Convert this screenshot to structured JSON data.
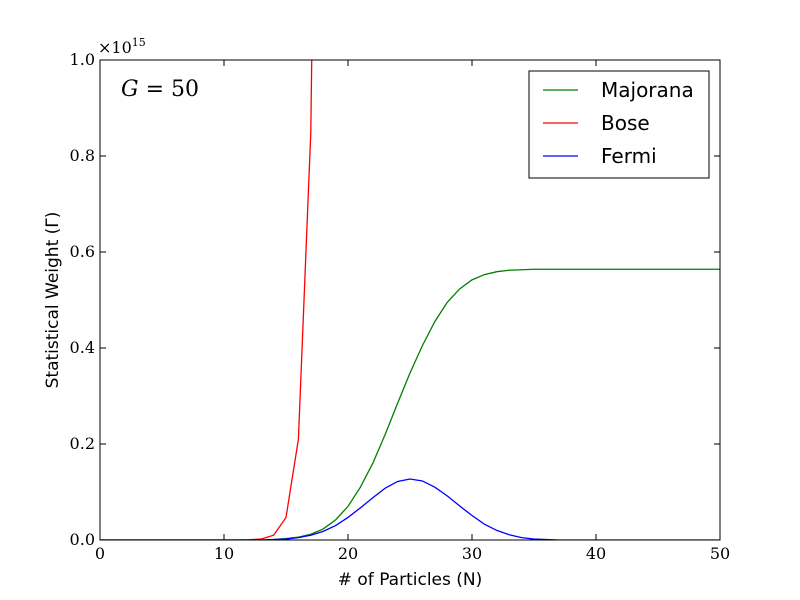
{
  "chart_data": {
    "type": "line",
    "xlabel": "# of Particles (N)",
    "ylabel": "Statistical Weight (Γ)",
    "xlim": [
      0,
      50
    ],
    "ylim": [
      0,
      1.0
    ],
    "x_ticks": [
      0,
      10,
      20,
      30,
      40,
      50
    ],
    "y_ticks": [
      0.0,
      0.2,
      0.4,
      0.6,
      0.8,
      1.0
    ],
    "y_tick_labels": [
      "0.0",
      "0.2",
      "0.4",
      "0.6",
      "0.8",
      "1.0"
    ],
    "y_offset": {
      "base": "×10",
      "exponent": "15"
    },
    "annotation": {
      "lhs": "G",
      "eq": " = ",
      "rhs": "50"
    },
    "grid": false,
    "legend_position": "top-right",
    "series": [
      {
        "name": "Majorana",
        "color": "#008000",
        "x": [
          0,
          1,
          2,
          3,
          4,
          5,
          6,
          7,
          8,
          9,
          10,
          11,
          12,
          13,
          14,
          15,
          16,
          17,
          18,
          19,
          20,
          21,
          22,
          23,
          24,
          25,
          26,
          27,
          28,
          29,
          30,
          31,
          32,
          33,
          34,
          35,
          36,
          37,
          38,
          39,
          40,
          41,
          42,
          43,
          44,
          45,
          46,
          47,
          48,
          49,
          50
        ],
        "y": [
          0,
          0,
          0,
          0,
          0,
          0,
          0,
          0,
          0,
          0,
          0,
          0,
          0,
          0,
          0.001,
          0.003,
          0.006,
          0.012,
          0.023,
          0.042,
          0.07,
          0.11,
          0.16,
          0.22,
          0.285,
          0.348,
          0.405,
          0.455,
          0.495,
          0.523,
          0.542,
          0.553,
          0.559,
          0.562,
          0.563,
          0.564,
          0.564,
          0.564,
          0.564,
          0.564,
          0.564,
          0.564,
          0.564,
          0.564,
          0.564,
          0.564,
          0.564,
          0.564,
          0.564,
          0.564,
          0.564
        ]
      },
      {
        "name": "Bose",
        "color": "#ff0000",
        "x": [
          0,
          1,
          2,
          3,
          4,
          5,
          6,
          7,
          8,
          9,
          10,
          11,
          12,
          13,
          14,
          15,
          16,
          17,
          17.1
        ],
        "y": [
          0,
          0,
          0,
          0,
          0,
          0,
          0,
          0,
          0,
          0,
          0,
          0,
          0.0005,
          0.002,
          0.01,
          0.047,
          0.21,
          0.85,
          1.05
        ]
      },
      {
        "name": "Fermi",
        "color": "#0000ff",
        "x": [
          0,
          1,
          2,
          3,
          4,
          5,
          6,
          7,
          8,
          9,
          10,
          11,
          12,
          13,
          14,
          15,
          16,
          17,
          18,
          19,
          20,
          21,
          22,
          23,
          24,
          25,
          26,
          27,
          28,
          29,
          30,
          31,
          32,
          33,
          34,
          35,
          36,
          37,
          38,
          39,
          40,
          41,
          42,
          43,
          44,
          45,
          46,
          47,
          48,
          49,
          50
        ],
        "y": [
          0,
          0,
          0,
          0,
          0,
          0,
          0,
          0,
          0,
          0,
          0,
          0,
          0,
          0,
          0.001,
          0.002,
          0.005,
          0.01,
          0.018,
          0.03,
          0.047,
          0.067,
          0.088,
          0.108,
          0.122,
          0.127,
          0.123,
          0.11,
          0.092,
          0.071,
          0.051,
          0.033,
          0.02,
          0.011,
          0.005,
          0.002,
          0.001,
          0,
          0,
          0,
          0,
          0,
          0,
          0,
          0,
          0,
          0,
          0,
          0,
          0,
          0
        ]
      }
    ]
  }
}
